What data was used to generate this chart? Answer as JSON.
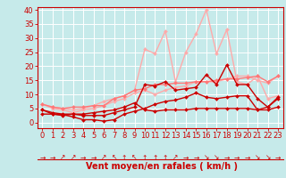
{
  "title": "",
  "xlabel": "Vent moyen/en rafales ( km/h )",
  "ylabel": "",
  "xlim": [
    -0.5,
    23.5
  ],
  "ylim": [
    -2,
    41
  ],
  "yticks": [
    0,
    5,
    10,
    15,
    20,
    25,
    30,
    35,
    40
  ],
  "xticks": [
    0,
    1,
    2,
    3,
    4,
    5,
    6,
    7,
    8,
    9,
    10,
    11,
    12,
    13,
    14,
    15,
    16,
    17,
    18,
    19,
    20,
    21,
    22,
    23
  ],
  "bg_color": "#c6eaea",
  "grid_color": "#ffffff",
  "series": [
    {
      "x": [
        0,
        1,
        2,
        3,
        4,
        5,
        6,
        7,
        8,
        9,
        10,
        11,
        12,
        13,
        14,
        15,
        16,
        17,
        18,
        19,
        20,
        21,
        22,
        23
      ],
      "y": [
        6.5,
        5.0,
        4.5,
        3.5,
        4.5,
        5.0,
        6.0,
        7.5,
        8.5,
        10.5,
        11.5,
        10.0,
        11.5,
        12.5,
        13.0,
        14.5,
        14.5,
        14.5,
        15.5,
        16.5,
        16.5,
        15.0,
        14.0,
        16.5
      ],
      "color": "#ffaaaa",
      "lw": 1.0,
      "marker": "D",
      "ms": 2.0
    },
    {
      "x": [
        0,
        1,
        2,
        3,
        4,
        5,
        6,
        7,
        8,
        9,
        10,
        11,
        12,
        13,
        14,
        15,
        16,
        17,
        18,
        19,
        20,
        21,
        22,
        23
      ],
      "y": [
        6.5,
        5.5,
        5.0,
        4.5,
        5.0,
        6.0,
        7.5,
        8.5,
        9.5,
        11.5,
        26.0,
        24.5,
        32.5,
        14.5,
        25.0,
        31.5,
        40.0,
        24.5,
        33.0,
        14.5,
        13.5,
        16.5,
        8.5,
        9.5
      ],
      "color": "#ffaaaa",
      "lw": 1.0,
      "marker": "D",
      "ms": 2.0
    },
    {
      "x": [
        0,
        1,
        2,
        3,
        4,
        5,
        6,
        7,
        8,
        9,
        10,
        11,
        12,
        13,
        14,
        15,
        16,
        17,
        18,
        19,
        20,
        21,
        22,
        23
      ],
      "y": [
        6.5,
        5.5,
        5.0,
        5.5,
        5.5,
        6.0,
        6.0,
        8.5,
        9.5,
        11.5,
        12.0,
        13.5,
        13.5,
        14.0,
        14.0,
        14.5,
        14.5,
        15.0,
        15.5,
        15.5,
        16.0,
        16.5,
        14.5,
        16.5
      ],
      "color": "#ff7777",
      "lw": 1.0,
      "marker": "D",
      "ms": 2.0
    },
    {
      "x": [
        0,
        1,
        2,
        3,
        4,
        5,
        6,
        7,
        8,
        9,
        10,
        11,
        12,
        13,
        14,
        15,
        16,
        17,
        18,
        19,
        20,
        21,
        22,
        23
      ],
      "y": [
        4.5,
        3.5,
        3.0,
        3.0,
        2.5,
        2.5,
        2.5,
        3.5,
        4.5,
        5.5,
        13.5,
        13.0,
        14.5,
        11.5,
        12.0,
        12.5,
        17.0,
        13.5,
        20.5,
        13.5,
        13.5,
        8.5,
        5.5,
        9.0
      ],
      "color": "#cc0000",
      "lw": 1.0,
      "marker": "D",
      "ms": 2.0
    },
    {
      "x": [
        0,
        1,
        2,
        3,
        4,
        5,
        6,
        7,
        8,
        9,
        10,
        11,
        12,
        13,
        14,
        15,
        16,
        17,
        18,
        19,
        20,
        21,
        22,
        23
      ],
      "y": [
        4.5,
        3.0,
        2.8,
        2.0,
        1.0,
        1.0,
        0.5,
        1.0,
        3.0,
        4.0,
        5.0,
        6.5,
        7.5,
        8.0,
        9.0,
        10.5,
        9.0,
        8.5,
        9.0,
        9.5,
        9.5,
        4.5,
        5.5,
        8.5
      ],
      "color": "#cc0000",
      "lw": 1.0,
      "marker": "D",
      "ms": 2.0
    },
    {
      "x": [
        0,
        1,
        2,
        3,
        4,
        5,
        6,
        7,
        8,
        9,
        10,
        11,
        12,
        13,
        14,
        15,
        16,
        17,
        18,
        19,
        20,
        21,
        22,
        23
      ],
      "y": [
        3.0,
        3.0,
        2.5,
        3.0,
        3.0,
        3.5,
        4.0,
        4.5,
        5.5,
        7.0,
        4.5,
        4.0,
        4.5,
        4.5,
        4.5,
        5.0,
        5.0,
        5.0,
        5.0,
        5.0,
        5.0,
        4.5,
        4.5,
        5.5
      ],
      "color": "#cc0000",
      "lw": 1.0,
      "marker": "D",
      "ms": 2.0
    }
  ],
  "wind_arrows": [
    "→",
    "→",
    "↗",
    "↗",
    "→",
    "→",
    "↗",
    "↖",
    "↑",
    "↖",
    "↑",
    "↑",
    "↑",
    "↗",
    "→",
    "→",
    "↘",
    "↘",
    "→",
    "→",
    "→",
    "↘",
    "↘",
    "→"
  ],
  "xlabel_color": "#cc0000",
  "xlabel_fontsize": 7,
  "tick_fontsize": 6,
  "tick_color": "#cc0000",
  "axis_color": "#cc0000"
}
